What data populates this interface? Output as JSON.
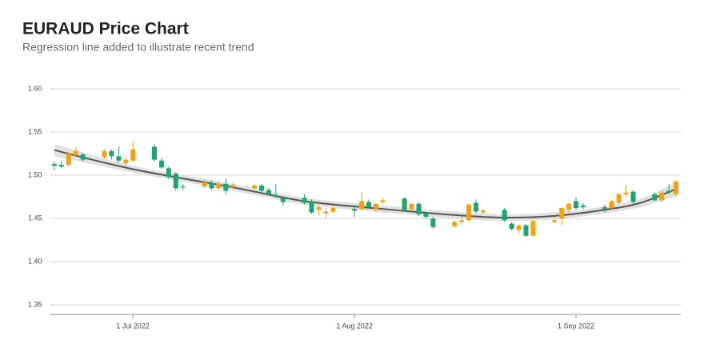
{
  "chart_data": {
    "type": "candlestick",
    "title": "EURAUD Price Chart",
    "subtitle": "Regression line added to illustrate recent trend",
    "up_color": "#f5a00f",
    "down_color": "#1aa571",
    "x": [
      "2022-06-20",
      "2022-06-21",
      "2022-06-22",
      "2022-06-23",
      "2022-06-24",
      "2022-06-27",
      "2022-06-28",
      "2022-06-29",
      "2022-06-30",
      "2022-07-01",
      "2022-07-04",
      "2022-07-05",
      "2022-07-06",
      "2022-07-07",
      "2022-07-08",
      "2022-07-11",
      "2022-07-12",
      "2022-07-13",
      "2022-07-14",
      "2022-07-15",
      "2022-07-18",
      "2022-07-19",
      "2022-07-20",
      "2022-07-21",
      "2022-07-22",
      "2022-07-25",
      "2022-07-26",
      "2022-07-27",
      "2022-07-28",
      "2022-07-29",
      "2022-08-01",
      "2022-08-02",
      "2022-08-03",
      "2022-08-04",
      "2022-08-05",
      "2022-08-08",
      "2022-08-09",
      "2022-08-10",
      "2022-08-11",
      "2022-08-12",
      "2022-08-15",
      "2022-08-16",
      "2022-08-17",
      "2022-08-18",
      "2022-08-19",
      "2022-08-22",
      "2022-08-23",
      "2022-08-24",
      "2022-08-25",
      "2022-08-26",
      "2022-08-29",
      "2022-08-30",
      "2022-08-31",
      "2022-09-01",
      "2022-09-02",
      "2022-09-05",
      "2022-09-06",
      "2022-09-07",
      "2022-09-08",
      "2022-09-09",
      "2022-09-12",
      "2022-09-13",
      "2022-09-14",
      "2022-09-15"
    ],
    "open": [
      1.513,
      1.512,
      1.512,
      1.523,
      1.524,
      1.521,
      1.528,
      1.522,
      1.514,
      1.517,
      1.533,
      1.517,
      1.508,
      1.502,
      1.487,
      1.487,
      1.491,
      1.485,
      1.49,
      1.486,
      1.485,
      1.488,
      1.483,
      1.477,
      1.474,
      1.474,
      1.47,
      1.46,
      1.456,
      1.458,
      1.461,
      1.461,
      1.469,
      1.46,
      1.469,
      1.473,
      1.461,
      1.467,
      1.456,
      1.45,
      1.441,
      1.446,
      1.448,
      1.468,
      1.457,
      1.46,
      1.444,
      1.437,
      1.442,
      1.43,
      1.446,
      1.45,
      1.46,
      1.47,
      1.465,
      1.463,
      1.462,
      1.468,
      1.478,
      1.481,
      1.478,
      1.471,
      1.482,
      1.478
    ],
    "high": [
      1.516,
      1.517,
      1.527,
      1.533,
      1.526,
      1.53,
      1.53,
      1.533,
      1.522,
      1.54,
      1.536,
      1.52,
      1.51,
      1.504,
      1.49,
      1.496,
      1.494,
      1.493,
      1.496,
      1.491,
      1.49,
      1.49,
      1.485,
      1.49,
      1.476,
      1.478,
      1.472,
      1.466,
      1.462,
      1.464,
      1.466,
      1.48,
      1.472,
      1.468,
      1.474,
      1.475,
      1.468,
      1.469,
      1.458,
      1.452,
      1.448,
      1.452,
      1.468,
      1.472,
      1.461,
      1.462,
      1.446,
      1.443,
      1.444,
      1.448,
      1.451,
      1.463,
      1.468,
      1.474,
      1.468,
      1.466,
      1.472,
      1.48,
      1.488,
      1.483,
      1.48,
      1.482,
      1.49,
      1.494
    ],
    "low": [
      1.506,
      1.508,
      1.51,
      1.521,
      1.516,
      1.519,
      1.518,
      1.514,
      1.51,
      1.515,
      1.516,
      1.507,
      1.496,
      1.482,
      1.483,
      1.485,
      1.483,
      1.483,
      1.478,
      1.484,
      1.484,
      1.481,
      1.477,
      1.474,
      1.465,
      1.466,
      1.455,
      1.454,
      1.451,
      1.456,
      1.452,
      1.459,
      1.461,
      1.457,
      1.467,
      1.458,
      1.459,
      1.453,
      1.45,
      1.438,
      1.439,
      1.443,
      1.446,
      1.456,
      1.455,
      1.446,
      1.436,
      1.433,
      1.429,
      1.429,
      1.444,
      1.442,
      1.457,
      1.46,
      1.461,
      1.457,
      1.46,
      1.466,
      1.475,
      1.467,
      1.47,
      1.469,
      1.478,
      1.475
    ],
    "close": [
      1.511,
      1.51,
      1.525,
      1.528,
      1.518,
      1.528,
      1.522,
      1.517,
      1.518,
      1.53,
      1.518,
      1.509,
      1.498,
      1.485,
      1.486,
      1.492,
      1.485,
      1.49,
      1.482,
      1.489,
      1.488,
      1.482,
      1.478,
      1.475,
      1.469,
      1.468,
      1.457,
      1.463,
      1.458,
      1.462,
      1.459,
      1.47,
      1.463,
      1.467,
      1.471,
      1.46,
      1.467,
      1.455,
      1.452,
      1.44,
      1.446,
      1.448,
      1.466,
      1.458,
      1.459,
      1.448,
      1.438,
      1.442,
      1.43,
      1.447,
      1.448,
      1.462,
      1.467,
      1.462,
      1.463,
      1.461,
      1.47,
      1.478,
      1.48,
      1.469,
      1.471,
      1.48,
      1.48,
      1.493
    ],
    "regression": {
      "color": "#555555",
      "band_color": "#d9d9d9",
      "x": [
        "2022-06-20",
        "2022-07-01",
        "2022-07-15",
        "2022-07-25",
        "2022-08-05",
        "2022-08-15",
        "2022-08-22",
        "2022-08-29",
        "2022-09-05",
        "2022-09-10",
        "2022-09-15"
      ],
      "values": [
        1.529,
        1.507,
        1.486,
        1.47,
        1.461,
        1.454,
        1.451,
        1.453,
        1.46,
        1.468,
        1.484
      ],
      "lower": [
        1.522,
        1.503,
        1.482,
        1.466,
        1.457,
        1.45,
        1.447,
        1.449,
        1.456,
        1.463,
        1.476
      ],
      "upper": [
        1.536,
        1.511,
        1.49,
        1.474,
        1.465,
        1.458,
        1.455,
        1.457,
        1.464,
        1.473,
        1.492
      ]
    },
    "xlim": [
      "2022-06-19",
      "2022-09-16"
    ],
    "xticks": [
      {
        "value": "2022-07-01",
        "label": "1 Jul 2022"
      },
      {
        "value": "2022-08-01",
        "label": "1 Aug 2022"
      },
      {
        "value": "2022-09-01",
        "label": "1 Sep 2022"
      }
    ],
    "ylim": [
      1.339,
      1.6
    ],
    "yticks": [
      1.35,
      {
        "value": 1.4,
        "label": "1.40"
      },
      1.45,
      {
        "value": 1.5,
        "label": "1.50"
      },
      1.55,
      {
        "value": 1.6,
        "label": "1.60"
      }
    ],
    "grid": true
  }
}
